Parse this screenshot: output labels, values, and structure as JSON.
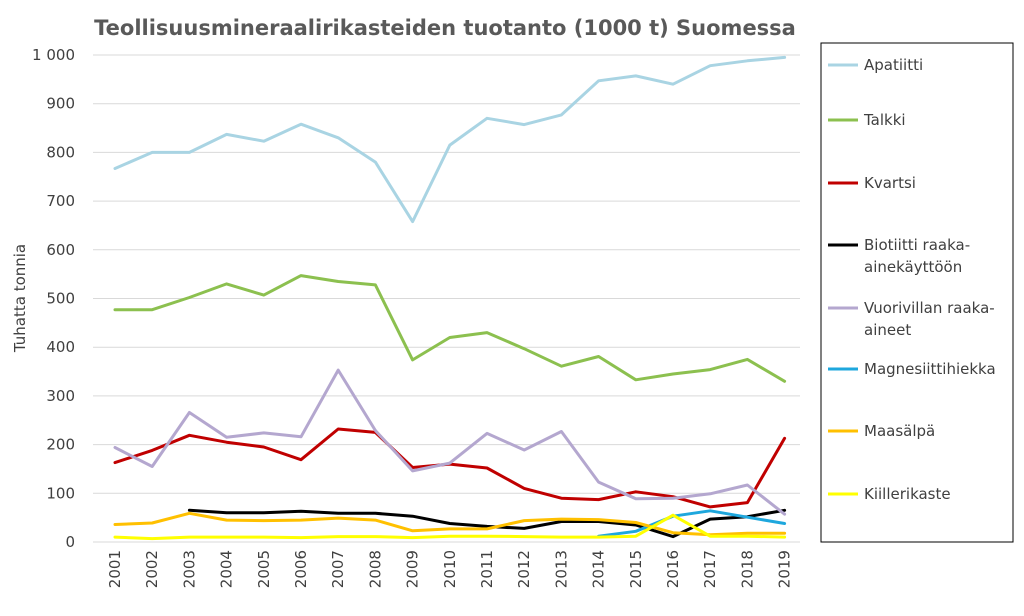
{
  "chart_data": {
    "type": "line",
    "title": "Teollisuusmineraalirikasteiden tuotanto (1000 t) Suomessa",
    "ylabel": "Tuhatta tonnia",
    "xlabel": "",
    "ylim": [
      0,
      1000
    ],
    "yticks": [
      0,
      100,
      200,
      300,
      400,
      500,
      600,
      700,
      800,
      900,
      1000
    ],
    "ytick_labels": [
      "0",
      "100",
      "200",
      "300",
      "400",
      "500",
      "600",
      "700",
      "800",
      "900",
      "1 000"
    ],
    "grid": true,
    "legend_position": "right",
    "x": [
      "2001",
      "2002",
      "2003",
      "2004",
      "2005",
      "2006",
      "2007",
      "2008",
      "2009",
      "2010",
      "2011",
      "2012",
      "2013",
      "2014",
      "2015",
      "2016",
      "2017",
      "2018",
      "2019"
    ],
    "series": [
      {
        "name": "Apatiitti",
        "color": "#a9d4e3",
        "values": [
          767,
          800,
          800,
          837,
          823,
          858,
          830,
          780,
          658,
          815,
          870,
          857,
          877,
          947,
          957,
          940,
          978,
          988,
          995
        ]
      },
      {
        "name": "Talkki",
        "color": "#8cc04f",
        "values": [
          477,
          477,
          502,
          530,
          507,
          547,
          535,
          528,
          374,
          420,
          430,
          397,
          361,
          381,
          333,
          345,
          354,
          375,
          330
        ]
      },
      {
        "name": "Kvartsi",
        "color": "#c00000",
        "values": [
          163,
          188,
          219,
          205,
          195,
          169,
          232,
          225,
          153,
          160,
          152,
          110,
          90,
          87,
          103,
          93,
          72,
          81,
          213
        ]
      },
      {
        "name": "Biotiitti raaka-ainekäyttöön",
        "color": "#000000",
        "values": [
          null,
          null,
          65,
          60,
          60,
          63,
          59,
          59,
          53,
          38,
          32,
          28,
          42,
          42,
          35,
          11,
          47,
          52,
          65
        ]
      },
      {
        "name": "Vuorivillan raaka-aineet",
        "color": "#b4a7cf",
        "values": [
          194,
          155,
          266,
          215,
          224,
          216,
          353,
          229,
          146,
          162,
          223,
          189,
          227,
          123,
          89,
          90,
          99,
          117,
          57
        ]
      },
      {
        "name": "Magnesiittihiekka",
        "color": "#1ea7dd",
        "values": [
          null,
          null,
          null,
          null,
          null,
          null,
          null,
          null,
          null,
          null,
          null,
          null,
          null,
          12,
          22,
          53,
          64,
          51,
          38
        ]
      },
      {
        "name": "Maasälpä",
        "color": "#ffc000",
        "values": [
          36,
          39,
          59,
          45,
          44,
          45,
          49,
          45,
          23,
          27,
          27,
          44,
          47,
          46,
          40,
          19,
          15,
          18,
          18
        ]
      },
      {
        "name": "Kiillerikaste",
        "color": "#ffff00",
        "values": [
          10,
          7,
          10,
          10,
          10,
          9,
          11,
          11,
          9,
          12,
          12,
          11,
          10,
          10,
          12,
          55,
          12,
          12,
          10
        ]
      }
    ]
  }
}
